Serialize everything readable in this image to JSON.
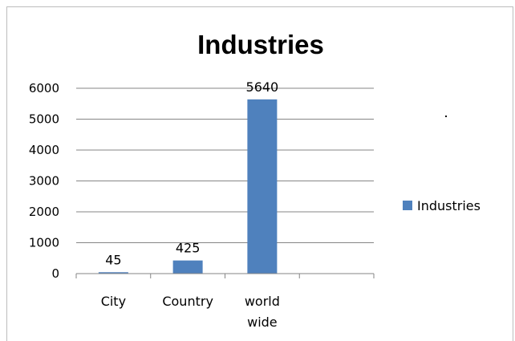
{
  "chart_data": {
    "type": "bar",
    "title": "Industries",
    "xlabel": "",
    "ylabel": "",
    "categories": [
      [
        "City"
      ],
      [
        "Country"
      ],
      [
        "world",
        "wide"
      ],
      [
        ""
      ]
    ],
    "series": [
      {
        "name": "Industries",
        "color": "#4f81bd",
        "values": [
          45,
          425,
          5640,
          null
        ],
        "data_labels": [
          "45",
          "425",
          "5640",
          ""
        ]
      }
    ],
    "ylim": [
      0,
      6000
    ],
    "yticks": [
      "0",
      "1000",
      "2000",
      "3000",
      "4000",
      "5000",
      "6000"
    ],
    "ytick_values": [
      0,
      1000,
      2000,
      3000,
      4000,
      5000,
      6000
    ],
    "grid": true,
    "legend": "right"
  }
}
